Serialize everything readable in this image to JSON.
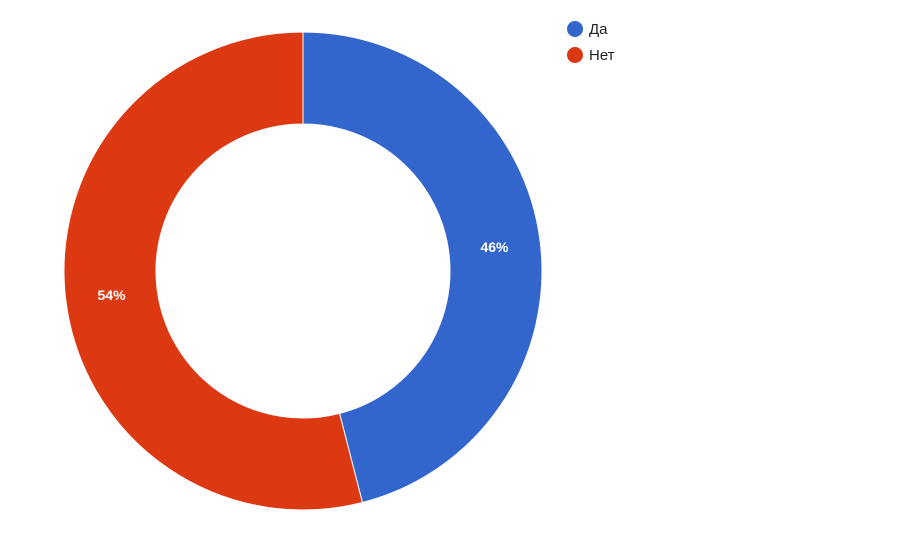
{
  "chart_data": {
    "type": "pie",
    "donut": true,
    "categories": [
      "Да",
      "Нет"
    ],
    "values": [
      46,
      54
    ],
    "labels": [
      "46%",
      "54%"
    ],
    "colors": [
      "#3366cc",
      "#dc3912"
    ],
    "legend": "top-right",
    "title": ""
  }
}
